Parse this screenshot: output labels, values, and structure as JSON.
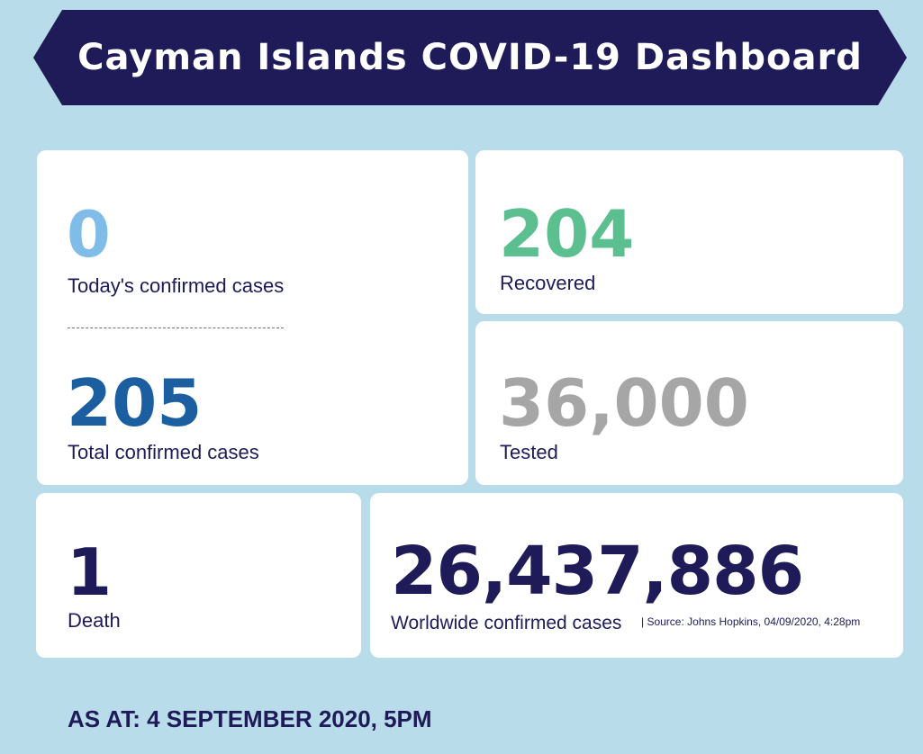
{
  "header": {
    "title": "Cayman Islands COVID-19 Dashboard"
  },
  "stats": {
    "today_confirmed": {
      "value": "0",
      "label": "Today's confirmed cases",
      "color": "#7fbde8"
    },
    "divider": "-----------------------",
    "total_confirmed": {
      "value": "205",
      "label": "Total confirmed cases",
      "color": "#1c5fa0"
    },
    "recovered": {
      "value": "204",
      "label": "Recovered",
      "color": "#5cbf8f"
    },
    "tested": {
      "value": "36,000",
      "label": "Tested",
      "color": "#a6a6a6"
    },
    "death": {
      "value": "1",
      "label": "Death",
      "color": "#1e1b58"
    },
    "worldwide": {
      "value": "26,437,886",
      "label": "Worldwide confirmed cases",
      "source": "| Source: Johns Hopkins, 04/09/2020, 4:28pm",
      "color": "#1e1b58"
    }
  },
  "footer": {
    "as_at": "AS AT: 4 SEPTEMBER 2020, 5PM"
  },
  "colors": {
    "background": "#b9dcea",
    "banner": "#1e1b58",
    "card": "#ffffff",
    "text": "#1d1b5a"
  }
}
